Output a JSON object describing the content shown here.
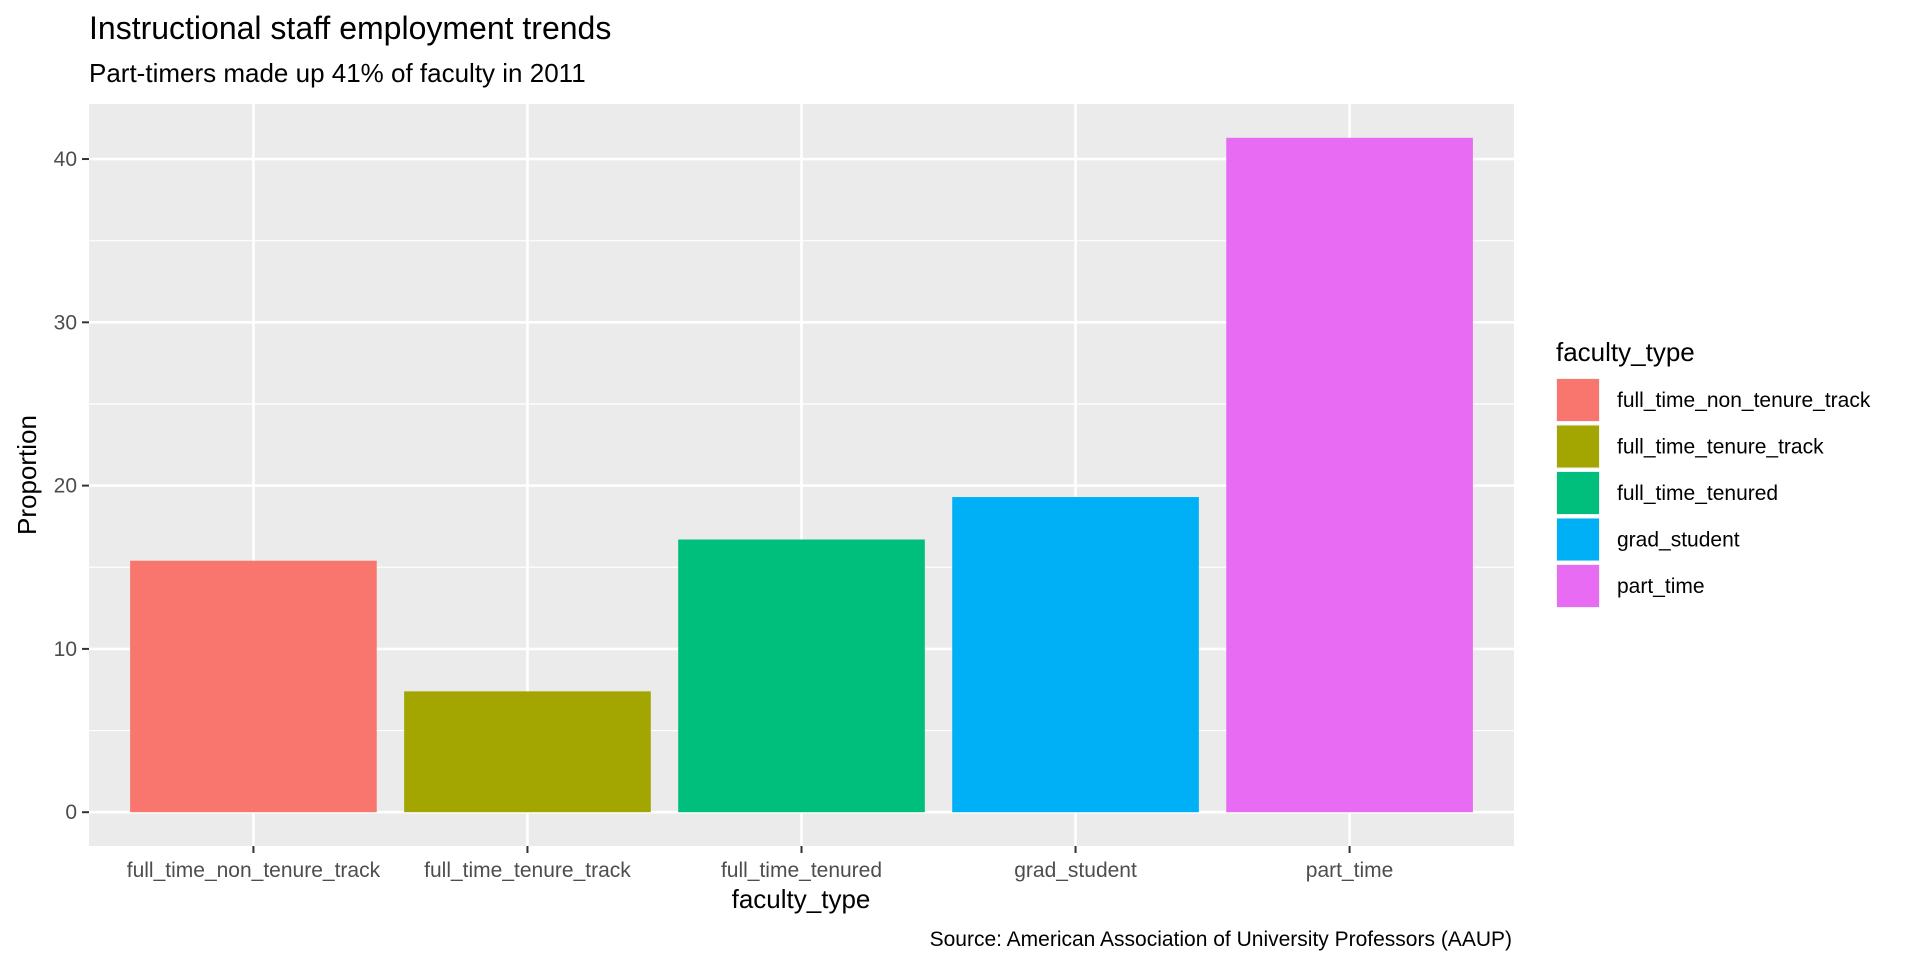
{
  "chart_data": {
    "type": "bar",
    "title": "Instructional staff employment trends",
    "subtitle": "Part-timers made up 41% of faculty in 2011",
    "caption": "Source: American Association of University Professors (AAUP)",
    "xlabel": "faculty_type",
    "ylabel": "Proportion",
    "categories": [
      "full_time_non_tenure_track",
      "full_time_tenure_track",
      "full_time_tenured",
      "grad_student",
      "part_time"
    ],
    "values": [
      15.4,
      7.4,
      16.7,
      19.3,
      41.3
    ],
    "colors": [
      "#F8766D",
      "#A3A500",
      "#00BF7D",
      "#00B0F6",
      "#E76BF3"
    ],
    "yticks": [
      0,
      10,
      20,
      30,
      40
    ],
    "ylim": [
      -2.07,
      43.37
    ],
    "grid": true,
    "legend": {
      "title": "faculty_type",
      "position": "right",
      "entries": [
        "full_time_non_tenure_track",
        "full_time_tenure_track",
        "full_time_tenured",
        "grad_student",
        "part_time"
      ]
    }
  }
}
